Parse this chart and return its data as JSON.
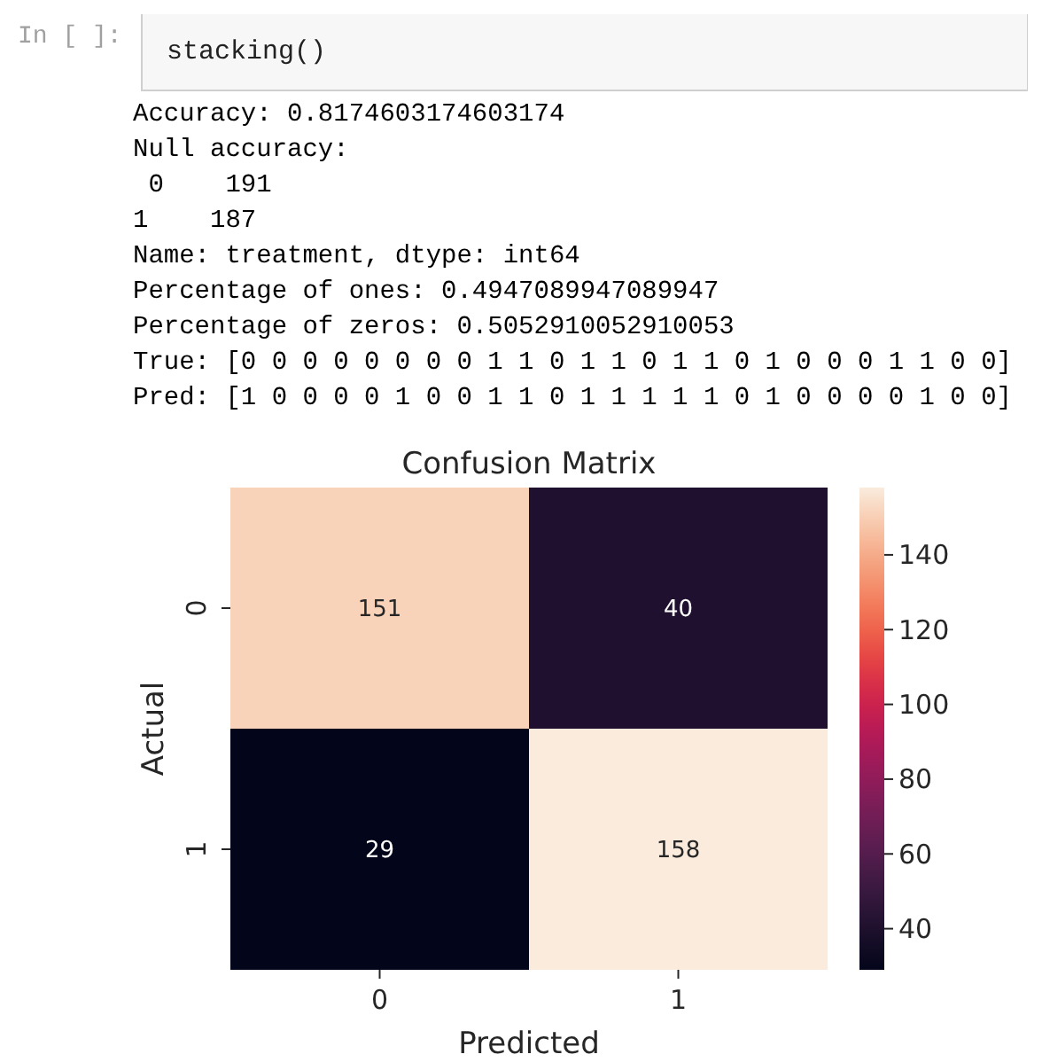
{
  "chart_data": {
    "type": "heatmap",
    "title": "Confusion Matrix",
    "xlabel": "Predicted",
    "ylabel": "Actual",
    "categories": [
      "0",
      "1"
    ],
    "y_categories": [
      "0",
      "1"
    ],
    "cells": [
      [
        151,
        40
      ],
      [
        29,
        158
      ]
    ],
    "data_labels": true,
    "clim": [
      29,
      158
    ],
    "cticks": [
      40,
      60,
      80,
      100,
      120,
      140
    ],
    "annotations": [
      "In [ ]:",
      "stacking()",
      "Accuracy: 0.8174603174603174",
      "Null accuracy:",
      " 0    191",
      "1    187",
      "Name: treatment, dtype: int64",
      "Percentage of ones: 0.4947089947089947",
      "Percentage of zeros: 0.5052910052910053",
      "True: [0 0 0 0 0 0 0 0 1 1 0 1 1 0 1 1 0 1 0 0 0 1 1 0 0]",
      "Pred: [1 0 0 0 0 1 0 0 1 1 0 1 1 1 1 1 0 1 0 0 0 0 1 0 0]"
    ]
  }
}
